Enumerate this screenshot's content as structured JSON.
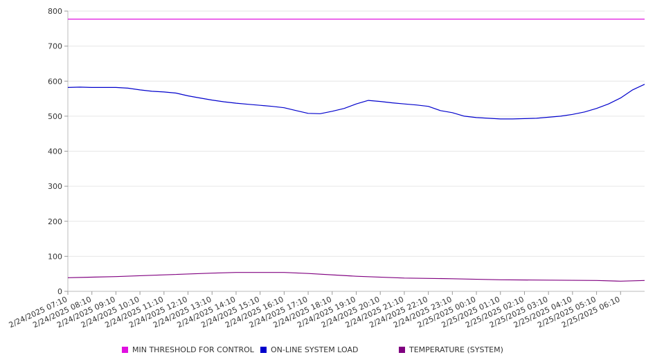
{
  "chart_data": {
    "type": "line",
    "ylim": [
      0,
      800
    ],
    "yticks": [
      0,
      100,
      200,
      300,
      400,
      500,
      600,
      700,
      800
    ],
    "grid": true,
    "legend_position": "bottom",
    "x_tick_labels": [
      "2/24/2025 07:10",
      "2/24/2025 08:10",
      "2/24/2025 09:10",
      "2/24/2025 10:10",
      "2/24/2025 11:10",
      "2/24/2025 12:10",
      "2/24/2025 13:10",
      "2/24/2025 14:10",
      "2/24/2025 15:10",
      "2/24/2025 16:10",
      "2/24/2025 17:10",
      "2/24/2025 18:10",
      "2/24/2025 19:10",
      "2/24/2025 20:10",
      "2/24/2025 21:10",
      "2/24/2025 22:10",
      "2/24/2025 23:10",
      "2/25/2025 00:10",
      "2/25/2025 01:10",
      "2/25/2025 02:10",
      "2/25/2025 03:10",
      "2/25/2025 04:10",
      "2/25/2025 05:10",
      "2/25/2025 06:10"
    ],
    "series": [
      {
        "name": "MIN THRESHOLD FOR CONTROL",
        "color": "#e010e0",
        "x": [
          "2/24/2025 07:10",
          "2/25/2025 07:10"
        ],
        "values": [
          777,
          777
        ]
      },
      {
        "name": "ON-LINE SYSTEM LOAD",
        "color": "#0000cc",
        "x": [
          "2/24/2025 07:10",
          "2/24/2025 07:40",
          "2/24/2025 08:10",
          "2/24/2025 08:40",
          "2/24/2025 09:10",
          "2/24/2025 09:40",
          "2/24/2025 10:10",
          "2/24/2025 10:40",
          "2/24/2025 11:10",
          "2/24/2025 11:40",
          "2/24/2025 12:10",
          "2/24/2025 12:40",
          "2/24/2025 13:10",
          "2/24/2025 13:40",
          "2/24/2025 14:10",
          "2/24/2025 14:40",
          "2/24/2025 15:10",
          "2/24/2025 15:40",
          "2/24/2025 16:10",
          "2/24/2025 16:40",
          "2/24/2025 17:10",
          "2/24/2025 17:40",
          "2/24/2025 18:10",
          "2/24/2025 18:40",
          "2/24/2025 19:10",
          "2/24/2025 19:40",
          "2/24/2025 20:10",
          "2/24/2025 20:40",
          "2/24/2025 21:10",
          "2/24/2025 21:40",
          "2/24/2025 22:10",
          "2/24/2025 22:40",
          "2/24/2025 23:10",
          "2/24/2025 23:40",
          "2/25/2025 00:10",
          "2/25/2025 00:40",
          "2/25/2025 01:10",
          "2/25/2025 01:40",
          "2/25/2025 02:10",
          "2/25/2025 02:40",
          "2/25/2025 03:10",
          "2/25/2025 03:40",
          "2/25/2025 04:10",
          "2/25/2025 04:40",
          "2/25/2025 05:10",
          "2/25/2025 05:40",
          "2/25/2025 06:10",
          "2/25/2025 06:40",
          "2/25/2025 07:10"
        ],
        "values": [
          582,
          583,
          582,
          582,
          582,
          580,
          575,
          571,
          569,
          566,
          558,
          552,
          546,
          541,
          537,
          534,
          531,
          528,
          524,
          516,
          508,
          507,
          514,
          522,
          535,
          545,
          542,
          538,
          535,
          532,
          528,
          516,
          510,
          500,
          496,
          494,
          492,
          492,
          493,
          494,
          497,
          500,
          505,
          512,
          522,
          535,
          552,
          575,
          591
        ]
      },
      {
        "name": "TEMPERATURE (SYSTEM)",
        "color": "#800080",
        "x": [
          "2/24/2025 07:10",
          "2/24/2025 09:10",
          "2/24/2025 11:10",
          "2/24/2025 13:10",
          "2/24/2025 14:10",
          "2/24/2025 16:10",
          "2/24/2025 17:10",
          "2/24/2025 19:10",
          "2/24/2025 21:10",
          "2/24/2025 23:10",
          "2/25/2025 01:10",
          "2/25/2025 03:10",
          "2/25/2025 05:10",
          "2/25/2025 06:10",
          "2/25/2025 07:10"
        ],
        "values": [
          39,
          42,
          47,
          52,
          54,
          54,
          51,
          43,
          38,
          36,
          33,
          32,
          31,
          29,
          31
        ]
      }
    ]
  }
}
